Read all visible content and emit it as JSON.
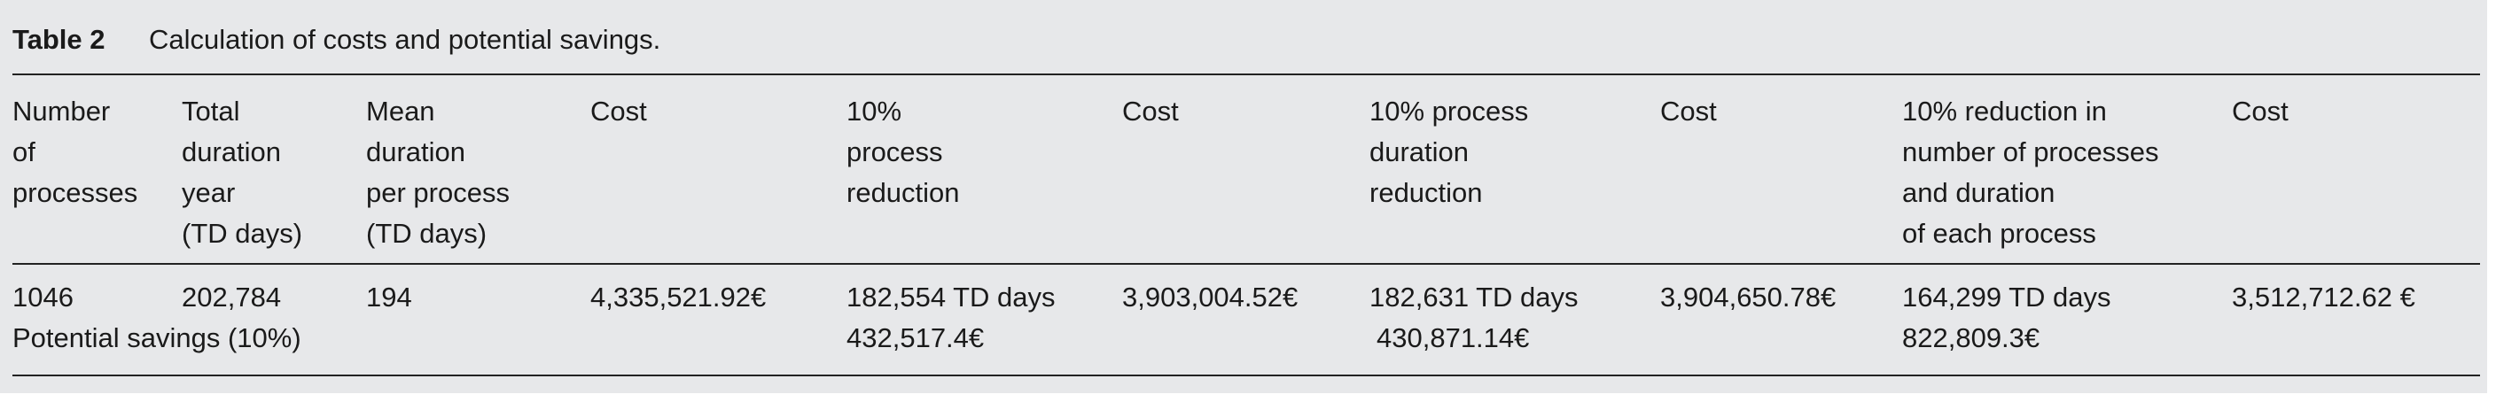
{
  "table": {
    "label": "Table 2",
    "caption": "Calculation of costs and potential savings.",
    "headers": [
      [
        "Number",
        "of",
        "processes"
      ],
      [
        "Total",
        "duration",
        "year",
        "(TD days)"
      ],
      [
        "Mean",
        "duration",
        "per process",
        "(TD days)"
      ],
      [
        "Cost"
      ],
      [
        "10%",
        "process",
        "reduction"
      ],
      [
        "Cost"
      ],
      [
        "10% process",
        "duration",
        "reduction"
      ],
      [
        "Cost"
      ],
      [
        "10% reduction in",
        "number of processes",
        "and duration",
        "of each process"
      ],
      [
        "Cost"
      ]
    ],
    "rows": [
      [
        "1046",
        "202,784",
        "194",
        "4,335,521.92€",
        "182,554 TD days",
        "3,903,004.52€",
        "182,631 TD days",
        "3,904,650.78€",
        "164,299 TD days",
        "3,512,712.62 €"
      ]
    ],
    "savings": {
      "label": "Potential savings (10%)",
      "values": [
        "432,517.4€",
        "430,871.14€",
        "822,809.3€"
      ]
    }
  }
}
